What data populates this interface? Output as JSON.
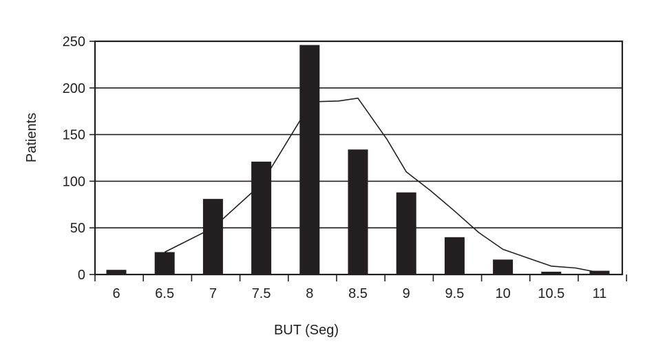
{
  "chart_data": {
    "type": "bar",
    "title": "",
    "xlabel": "BUT (Seg)",
    "ylabel": "Patients",
    "categories": [
      "6",
      "6.5",
      "7",
      "7.5",
      "8",
      "8.5",
      "9",
      "9.5",
      "10",
      "10.5",
      "11"
    ],
    "values": [
      5,
      24,
      81,
      121,
      246,
      134,
      88,
      40,
      16,
      3,
      4
    ],
    "ylim": [
      0,
      250
    ],
    "yticks": [
      "0",
      "50",
      "100",
      "150",
      "200",
      "250"
    ],
    "grid": true,
    "legend": "none",
    "colors": {
      "bar": "#231f20",
      "line": "#231f20",
      "grid": "#231f20",
      "axis": "#231f20"
    },
    "overlay_line": {
      "type": "line",
      "points": [
        [
          6.5,
          24
        ],
        [
          7,
          50
        ],
        [
          7.5,
          97
        ],
        [
          7.9,
          165
        ],
        [
          8.0,
          185
        ],
        [
          8.3,
          186
        ],
        [
          8.5,
          189
        ],
        [
          8.8,
          145
        ],
        [
          9.0,
          110
        ],
        [
          9.25,
          90
        ],
        [
          9.5,
          68
        ],
        [
          9.75,
          45
        ],
        [
          10.0,
          27
        ],
        [
          10.25,
          18
        ],
        [
          10.5,
          9
        ],
        [
          10.75,
          7
        ],
        [
          11.0,
          2
        ]
      ]
    }
  }
}
